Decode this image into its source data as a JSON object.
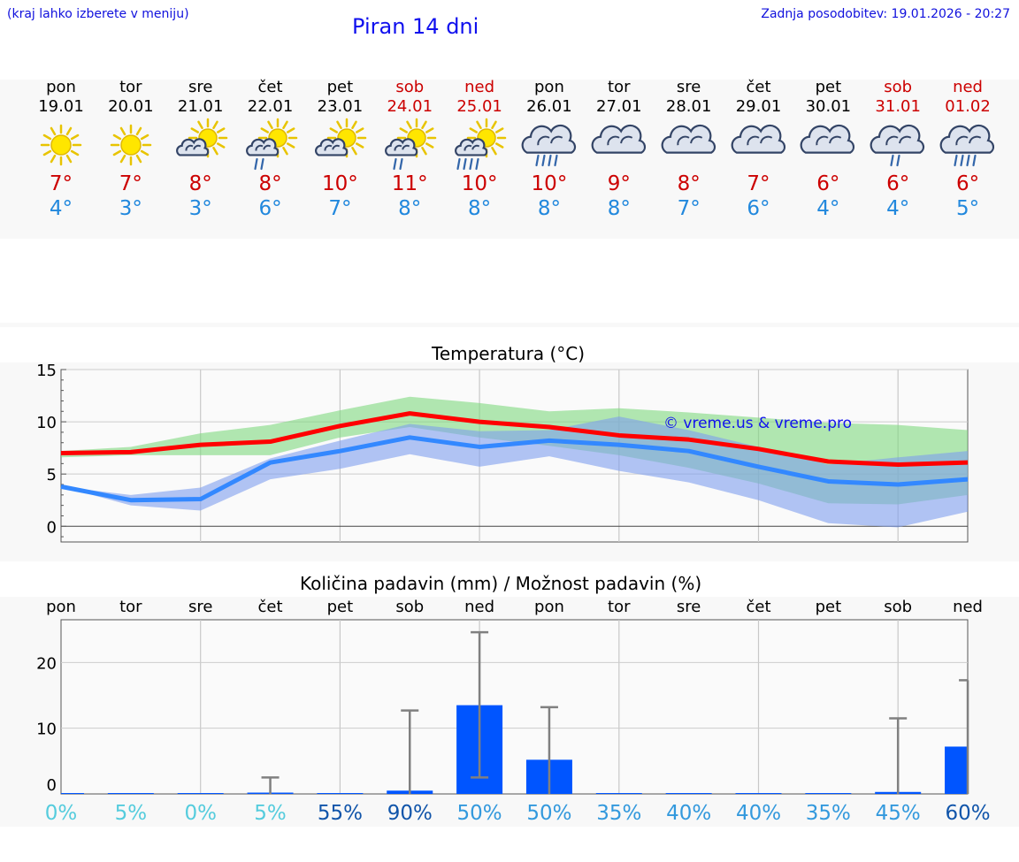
{
  "header": {
    "menu_hint": "(kraj lahko izberete v meniju)",
    "title": "Piran 14 dni",
    "last_update": "Zadnja posodobitev: 19.01.2026 - 20:27"
  },
  "days": [
    {
      "name": "pon",
      "date": "19.01",
      "weekend": false,
      "icon": "sun-icon",
      "max": "7°",
      "min": "4°"
    },
    {
      "name": "tor",
      "date": "20.01",
      "weekend": false,
      "icon": "sun-icon",
      "max": "7°",
      "min": "3°"
    },
    {
      "name": "sre",
      "date": "21.01",
      "weekend": false,
      "icon": "sun-cloud-icon",
      "max": "8°",
      "min": "3°"
    },
    {
      "name": "čet",
      "date": "22.01",
      "weekend": false,
      "icon": "sun-cloud-rain-icon",
      "max": "8°",
      "min": "6°"
    },
    {
      "name": "pet",
      "date": "23.01",
      "weekend": false,
      "icon": "sun-cloud-icon",
      "max": "10°",
      "min": "7°"
    },
    {
      "name": "sob",
      "date": "24.01",
      "weekend": true,
      "icon": "sun-cloud-rain-icon",
      "max": "11°",
      "min": "8°"
    },
    {
      "name": "ned",
      "date": "25.01",
      "weekend": true,
      "icon": "sun-cloud-heavy-rain-icon",
      "max": "10°",
      "min": "8°"
    },
    {
      "name": "pon",
      "date": "26.01",
      "weekend": false,
      "icon": "cloud-heavy-rain-icon",
      "max": "10°",
      "min": "8°"
    },
    {
      "name": "tor",
      "date": "27.01",
      "weekend": false,
      "icon": "cloud-icon",
      "max": "9°",
      "min": "8°"
    },
    {
      "name": "sre",
      "date": "28.01",
      "weekend": false,
      "icon": "cloud-icon",
      "max": "8°",
      "min": "7°"
    },
    {
      "name": "čet",
      "date": "29.01",
      "weekend": false,
      "icon": "cloud-icon",
      "max": "7°",
      "min": "6°"
    },
    {
      "name": "pet",
      "date": "30.01",
      "weekend": false,
      "icon": "cloud-icon",
      "max": "6°",
      "min": "4°"
    },
    {
      "name": "sob",
      "date": "31.01",
      "weekend": true,
      "icon": "cloud-rain-icon",
      "max": "6°",
      "min": "4°"
    },
    {
      "name": "ned",
      "date": "01.02",
      "weekend": true,
      "icon": "cloud-heavy-rain-icon",
      "max": "6°",
      "min": "5°"
    }
  ],
  "colors": {
    "max_line": "#ff0000",
    "min_line": "#3388ff",
    "max_band": "#7fd87f",
    "min_band": "#7f9fee",
    "bar": "#0055ff",
    "err": "#808080",
    "pct_low": "#55ccdd",
    "pct_mid": "#3399dd",
    "pct_high": "#1155aa"
  },
  "chart_data": [
    {
      "type": "line",
      "title": "Temperatura (°C)",
      "watermark": "© vreme.us & vreme.pro",
      "x": [
        0,
        1,
        2,
        3,
        4,
        5,
        6,
        7,
        8,
        9,
        10,
        11,
        12,
        13
      ],
      "ylim": [
        -1.5,
        15
      ],
      "yticks": [
        0,
        5,
        10,
        15
      ],
      "series": [
        {
          "name": "max",
          "values": [
            7,
            7.1,
            7.8,
            8.1,
            9.6,
            10.8,
            10.0,
            9.5,
            8.7,
            8.3,
            7.4,
            6.2,
            5.9,
            6.1
          ],
          "band_low": [
            6.6,
            6.8,
            6.8,
            6.8,
            8.5,
            9.5,
            8.5,
            7.7,
            6.8,
            5.6,
            4.1,
            2.2,
            2.1,
            3.0
          ],
          "band_high": [
            7.2,
            7.6,
            8.9,
            9.7,
            11.1,
            12.4,
            11.8,
            11.0,
            11.3,
            10.9,
            10.4,
            9.9,
            9.7,
            9.2
          ]
        },
        {
          "name": "min",
          "values": [
            3.8,
            2.5,
            2.6,
            6.1,
            7.2,
            8.5,
            7.6,
            8.2,
            7.8,
            7.2,
            5.7,
            4.3,
            4.0,
            4.5
          ],
          "band_low": [
            3.8,
            2.0,
            1.5,
            4.5,
            5.5,
            6.9,
            5.7,
            6.7,
            5.3,
            4.2,
            2.5,
            0.3,
            -0.1,
            1.4
          ],
          "band_high": [
            3.8,
            3.0,
            3.7,
            6.5,
            8.2,
            9.8,
            9.1,
            9.2,
            10.5,
            9.2,
            7.6,
            5.9,
            6.6,
            7.2
          ]
        }
      ]
    },
    {
      "type": "bar",
      "title": "Količina padavin (mm) / Možnost padavin (%)",
      "categories": [
        "pon",
        "tor",
        "sre",
        "čet",
        "pet",
        "sob",
        "ned",
        "pon",
        "tor",
        "sre",
        "čet",
        "pet",
        "sob",
        "ned"
      ],
      "values": [
        0,
        0,
        0,
        0.2,
        0,
        0.5,
        13.5,
        5.2,
        0,
        0,
        0,
        0,
        0.3,
        7.2
      ],
      "err_low": [
        0,
        0,
        0,
        0,
        0,
        0,
        2.5,
        0,
        0,
        0,
        0,
        0,
        0,
        0
      ],
      "err_high": [
        0,
        0,
        0,
        2.5,
        0,
        12.7,
        24.6,
        13.2,
        0,
        0,
        0,
        0,
        11.5,
        17.3
      ],
      "percent": [
        "0%",
        "5%",
        "0%",
        "5%",
        "55%",
        "90%",
        "50%",
        "50%",
        "35%",
        "40%",
        "40%",
        "35%",
        "45%",
        "60%"
      ],
      "ylim": [
        0,
        26.5
      ],
      "yticks": [
        0,
        10,
        20
      ]
    }
  ]
}
